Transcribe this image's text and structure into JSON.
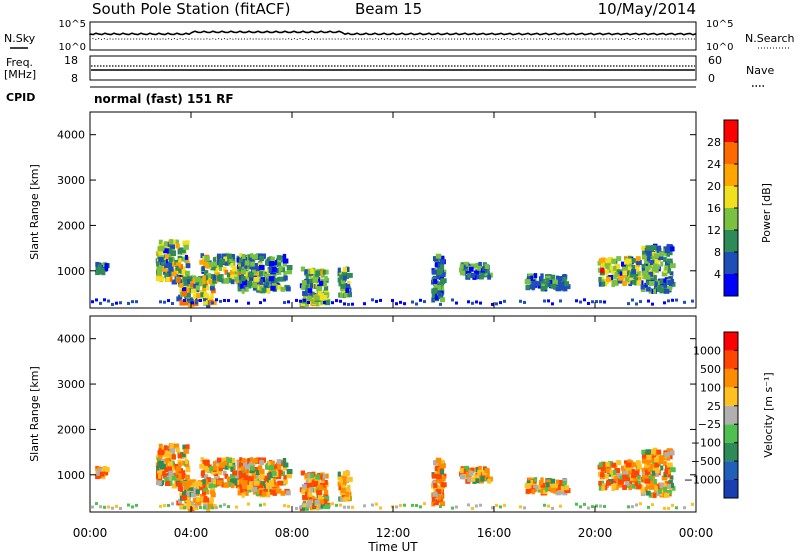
{
  "header": {
    "station": "South Pole Station (fitACF)",
    "beam": "Beam 15",
    "date": "10/May/2014"
  },
  "top_panel": {
    "left_label": "N.Sky",
    "right_label": "N.Search",
    "left_ticks": [
      "10^5",
      "10^0"
    ],
    "right_ticks": [
      "10^5",
      "10^0"
    ]
  },
  "freq_panel": {
    "left_label_line1": "Freq.",
    "left_label_line2": "[MHz]",
    "right_label": "Nave",
    "left_ticks": [
      "18",
      "8"
    ],
    "right_ticks": [
      "60",
      "0"
    ]
  },
  "cpid": {
    "label": "CPID",
    "text": "normal (fast) 151 RF"
  },
  "chart_data": [
    {
      "type": "heatmap",
      "name": "power",
      "xlabel": "Time UT",
      "ylabel": "Slant Range [km]",
      "x_range_hours": [
        0,
        24
      ],
      "ylim": [
        180,
        4500
      ],
      "yticks": [
        1000,
        2000,
        3000,
        4000
      ],
      "colorbar": {
        "label": "Power [dB]",
        "ticks": [
          "4",
          "8",
          "12",
          "16",
          "20",
          "24",
          "28"
        ],
        "colors": [
          "#0000ff",
          "#1e4fb8",
          "#2e8b57",
          "#7ac142",
          "#f0e020",
          "#ffa500",
          "#ff6a00",
          "#ff0000"
        ]
      }
    },
    {
      "type": "heatmap",
      "name": "velocity",
      "xlabel": "Time UT",
      "ylabel": "Slant Range [km]",
      "x_range_hours": [
        0,
        24
      ],
      "ylim": [
        180,
        4500
      ],
      "yticks": [
        1000,
        2000,
        3000,
        4000
      ],
      "xticks": [
        "00:00",
        "04:00",
        "08:00",
        "12:00",
        "16:00",
        "20:00",
        "00:00"
      ],
      "colorbar": {
        "label": "Velocity [m s⁻¹]",
        "ticks": [
          "1000",
          "500",
          "100",
          "25",
          "−25",
          "−100",
          "−500",
          "−1000"
        ],
        "colors": [
          "#1a3fb0",
          "#2060b8",
          "#2e8b57",
          "#4fc04f",
          "#b0b0b0",
          "#ffc020",
          "#ff8c00",
          "#ff4500",
          "#ff0000"
        ]
      }
    }
  ]
}
